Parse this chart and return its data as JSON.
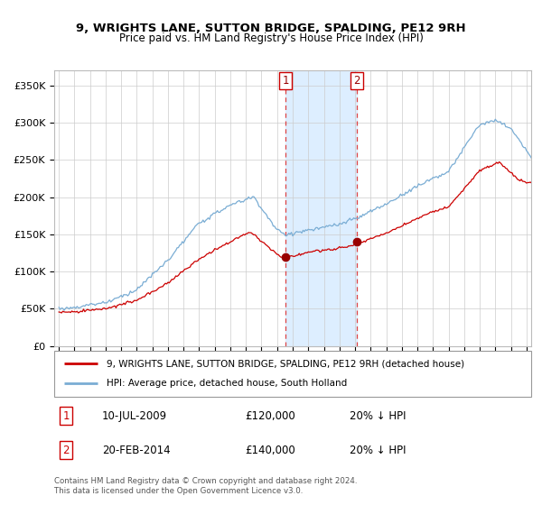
{
  "title": "9, WRIGHTS LANE, SUTTON BRIDGE, SPALDING, PE12 9RH",
  "subtitle": "Price paid vs. HM Land Registry's House Price Index (HPI)",
  "legend_line1": "9, WRIGHTS LANE, SUTTON BRIDGE, SPALDING, PE12 9RH (detached house)",
  "legend_line2": "HPI: Average price, detached house, South Holland",
  "transaction1_date": "10-JUL-2009",
  "transaction1_price": "£120,000",
  "transaction1_hpi": "20% ↓ HPI",
  "transaction2_date": "20-FEB-2014",
  "transaction2_price": "£140,000",
  "transaction2_hpi": "20% ↓ HPI",
  "footnote": "Contains HM Land Registry data © Crown copyright and database right 2024.\nThis data is licensed under the Open Government Licence v3.0.",
  "line_color_property": "#cc0000",
  "line_color_hpi": "#7aadd4",
  "shade_color": "#ddeeff",
  "transaction1_x": 2009.54,
  "transaction2_x": 2014.12,
  "transaction1_y": 120000,
  "transaction2_y": 140000,
  "ylim": [
    0,
    370000
  ],
  "xlim_start": 1994.7,
  "xlim_end": 2025.3
}
